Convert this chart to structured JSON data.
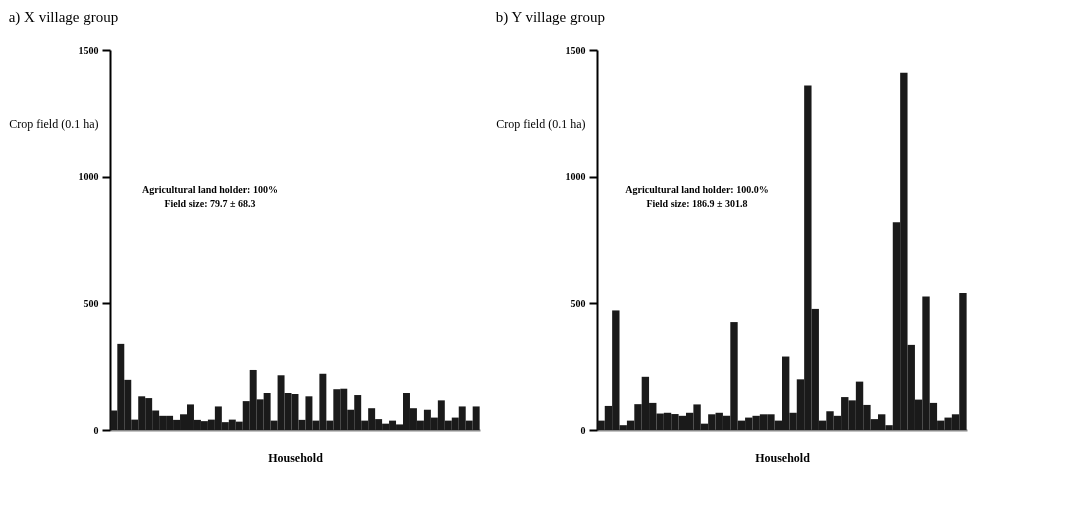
{
  "chart_data": [
    {
      "type": "bar",
      "title": "a) X village group",
      "ylabel": "Crop field (0.1 ha)",
      "xlabel": "Household",
      "color": "#1a1a1a",
      "grid": false,
      "categories": [
        null,
        null,
        null,
        null,
        null,
        null,
        null,
        null,
        null,
        null,
        null,
        null,
        null,
        null,
        null,
        null,
        null,
        null,
        null,
        null,
        null,
        null,
        null,
        null,
        null,
        null,
        null,
        null,
        null,
        null,
        null,
        null,
        null,
        null,
        null,
        null,
        null,
        null,
        null,
        null,
        null,
        null,
        null,
        null,
        null,
        null,
        null,
        null,
        null,
        null,
        null,
        null,
        null
      ],
      "values": [
        77,
        340,
        198,
        41,
        133,
        126,
        77,
        56,
        56,
        40,
        62,
        101,
        40,
        35,
        41,
        93,
        31,
        41,
        33,
        114,
        237,
        121,
        146,
        37,
        216,
        146,
        142,
        40,
        133,
        37,
        222,
        37,
        161,
        163,
        80,
        138,
        37,
        86,
        43,
        25,
        37,
        22,
        146,
        86,
        37,
        80,
        49,
        117,
        37,
        49,
        93,
        37,
        93
      ],
      "ylim": [
        0,
        1500
      ],
      "yticks": [
        0,
        500,
        1000,
        1500
      ],
      "annotations": [
        "Agricultural land holder: 100%",
        "Field size: 79.7 ± 68.3"
      ]
    },
    {
      "type": "bar",
      "title": "b) Y village group",
      "ylabel": "Crop field (0.1 ha)",
      "xlabel": "Household",
      "color": "#1a1a1a",
      "grid": false,
      "categories": [
        null,
        null,
        null,
        null,
        null,
        null,
        null,
        null,
        null,
        null,
        null,
        null,
        null,
        null,
        null,
        null,
        null,
        null,
        null,
        null,
        null,
        null,
        null,
        null,
        null,
        null,
        null,
        null,
        null,
        null,
        null,
        null,
        null,
        null,
        null,
        null,
        null,
        null,
        null,
        null,
        null,
        null,
        null,
        null,
        null,
        null,
        null,
        null,
        null,
        null
      ],
      "values": [
        37,
        95,
        472,
        19,
        37,
        102,
        210,
        107,
        65,
        68,
        63,
        56,
        68,
        101,
        25,
        62,
        68,
        56,
        426,
        37,
        49,
        56,
        62,
        62,
        37,
        290,
        68,
        200,
        1360,
        478,
        37,
        74,
        56,
        130,
        117,
        191,
        99,
        43,
        62,
        19,
        820,
        1410,
        336,
        120,
        527,
        107,
        37,
        49,
        62,
        541
      ],
      "ylim": [
        0,
        1500
      ],
      "yticks": [
        0,
        500,
        1000,
        1500
      ],
      "annotations": [
        "Agricultural land holder: 100.0%",
        "Field size: 186.9 ± 301.8"
      ]
    }
  ]
}
